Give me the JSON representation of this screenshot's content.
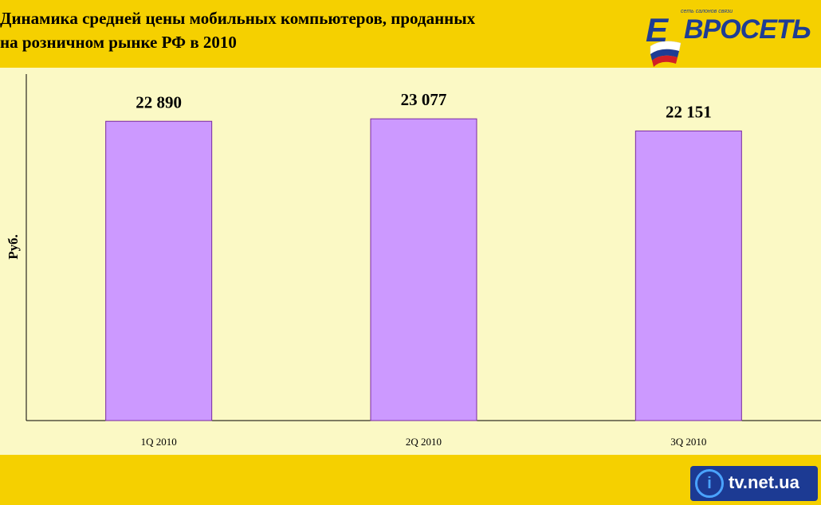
{
  "header": {
    "title_line1": "Динамика средней цены мобильных компьютеров,  проданных",
    "title_line2": "на розничном рынке РФ в 2010"
  },
  "logo": {
    "name": "Евросеть",
    "text": "ВРОСЕТЬ",
    "slogan": "сеть салонов связи",
    "colors": {
      "blue": "#1e3c94",
      "red": "#d21f26",
      "white": "#ffffff"
    }
  },
  "watermark": {
    "icon": "i-circle-icon",
    "text": "tv.net.ua"
  },
  "colors": {
    "background": "#f5d000",
    "plot_area": "#fbf9c5",
    "bar_fill": "#cc99ff",
    "bar_stroke": "#7a2aa0"
  },
  "chart_data": {
    "type": "bar",
    "title": "Динамика средней цены мобильных компьютеров,  проданных на розничном рынке РФ в 2010",
    "categories": [
      "1Q 2010",
      "2Q 2010",
      "3Q 2010"
    ],
    "values": [
      22890,
      23077,
      22151
    ],
    "value_labels": [
      "22 890",
      "23 077",
      "22 151"
    ],
    "xlabel": "",
    "ylabel": "Руб.",
    "ylim": [
      0,
      26500
    ],
    "grid": false,
    "legend": "none"
  }
}
